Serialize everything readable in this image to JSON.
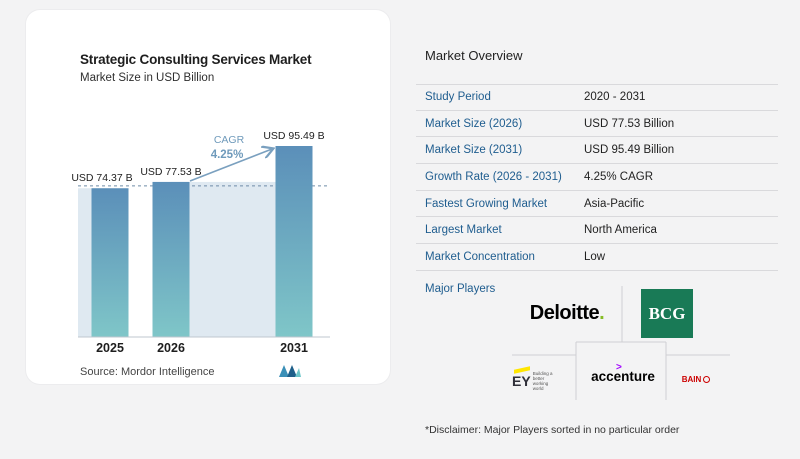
{
  "chart_data": {
    "type": "bar",
    "title": "Strategic Consulting Services Market",
    "subtitle": "Market Size in USD Billion",
    "categories": [
      "2025",
      "2026",
      "2031"
    ],
    "values": [
      74.37,
      77.53,
      95.49
    ],
    "value_labels": [
      "USD 74.37 B",
      "USD 77.53 B",
      "USD 95.49 B"
    ],
    "cagr_label": "CAGR",
    "cagr_value": "4.25%",
    "ylim": [
      0,
      100
    ],
    "grid": false,
    "colors": {
      "bar_top": "#5b8fb9",
      "bar_bottom": "#7fc6c8",
      "band": "#dfe9f1",
      "arrow": "#7aa0bf",
      "cagr_text": "#6f9abb"
    }
  },
  "source": "Source:  Mordor Intelligence",
  "overview": {
    "title": "Market Overview",
    "rows": [
      {
        "label": "Study Period",
        "value": "2020 - 2031"
      },
      {
        "label": "Market Size (2026)",
        "value": "USD 77.53 Billion"
      },
      {
        "label": "Market Size (2031)",
        "value": "USD 95.49 Billion"
      },
      {
        "label": "Growth Rate (2026 - 2031)",
        "value": "4.25% CAGR"
      },
      {
        "label": "Fastest Growing Market",
        "value": "Asia-Pacific"
      },
      {
        "label": "Largest Market",
        "value": "North America"
      },
      {
        "label": "Market Concentration",
        "value": "Low"
      }
    ]
  },
  "players": {
    "label": "Major Players",
    "logos": {
      "deloitte": "Deloitte",
      "bcg": "BCG",
      "ey": "EY",
      "ey_tagline": "Building a better working world",
      "accenture": "accenture",
      "bain": "BAIN"
    }
  },
  "disclaimer": "*Disclaimer: Major Players sorted in no particular order"
}
